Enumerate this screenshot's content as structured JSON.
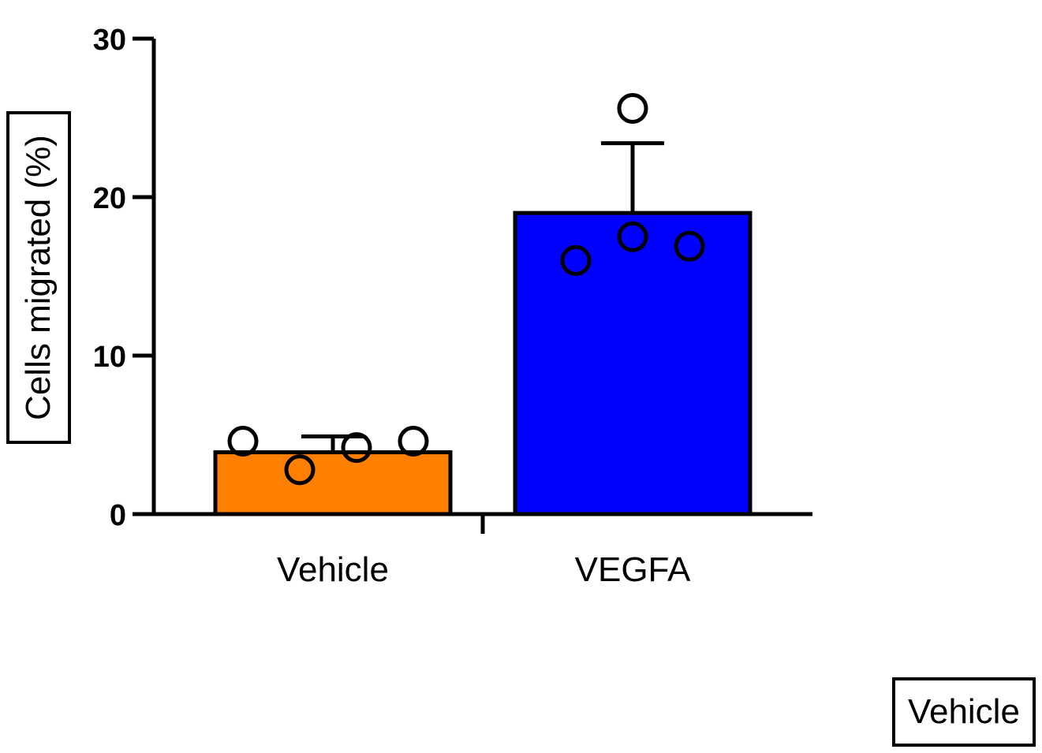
{
  "chart_data": {
    "type": "bar",
    "ylabel": "Cells migrated (%)",
    "xlabel": "",
    "ylim": [
      0,
      30
    ],
    "yticks": [
      0,
      10,
      20,
      30
    ],
    "categories": [
      "Vehicle",
      "VEGFA"
    ],
    "values": [
      3.9,
      19.0
    ],
    "error_upper": [
      4.9,
      23.4
    ],
    "points": [
      [
        4.6,
        2.8,
        4.2,
        4.6
      ],
      [
        16.0,
        17.5,
        16.9,
        25.6
      ]
    ],
    "colors": [
      "#ff8000",
      "#0000ff"
    ],
    "legend": [
      "Vehicle"
    ],
    "legend_position": "bottom-right",
    "grid": false
  }
}
